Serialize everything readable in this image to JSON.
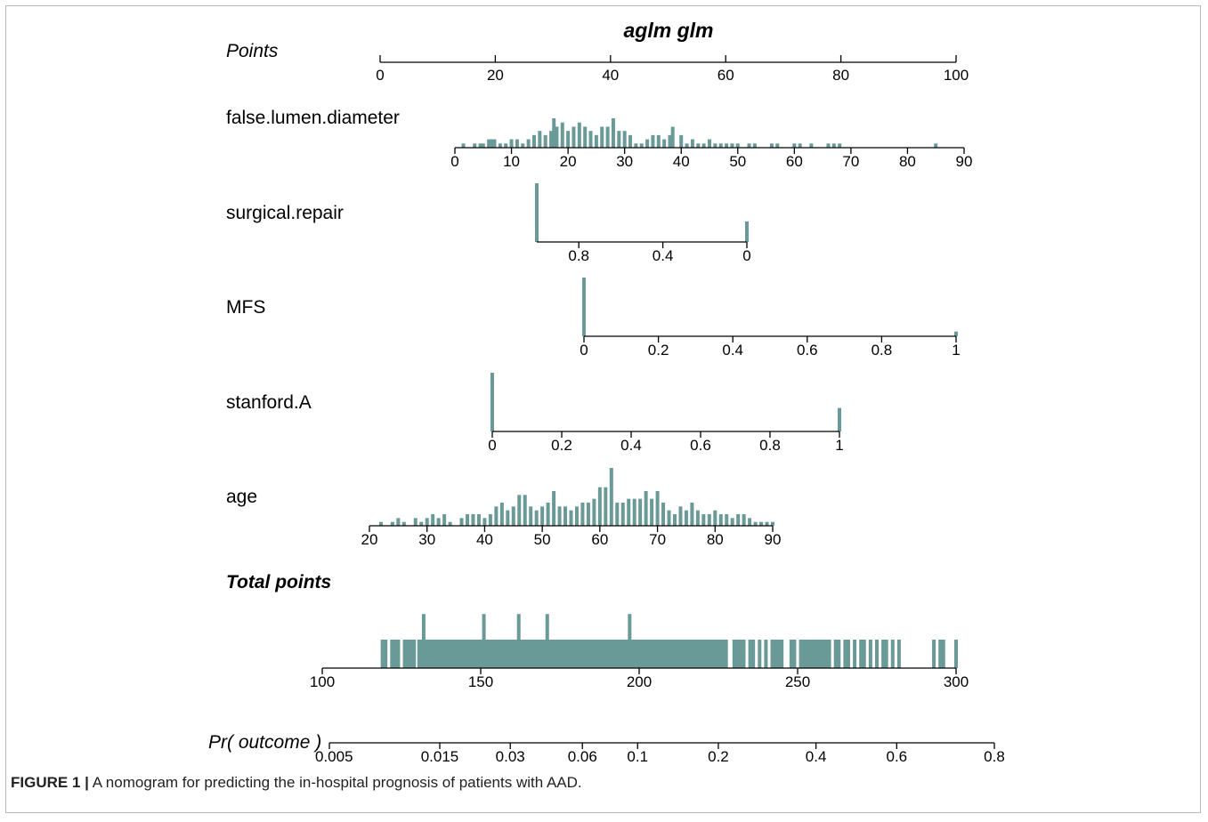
{
  "chart_data": {
    "type": "nomogram",
    "title": "aglm glm",
    "bar_color": "#6a9a97",
    "rows": [
      {
        "key": "points",
        "label": "Points",
        "label_style": "italic",
        "ticks": [
          "0",
          "20",
          "40",
          "60",
          "80",
          "100"
        ],
        "range": [
          0,
          100
        ]
      },
      {
        "key": "false_lumen_diameter",
        "label": "false.lumen.diameter",
        "ticks": [
          "0",
          "10",
          "20",
          "30",
          "40",
          "50",
          "60",
          "70",
          "80",
          "90"
        ],
        "range": [
          0,
          90
        ],
        "spikes": [
          {
            "x": 1.5,
            "h": 0.3
          },
          {
            "x": 3.5,
            "h": 0.3
          },
          {
            "x": 4.5,
            "h": 0.3
          },
          {
            "x": 5,
            "h": 0.3
          },
          {
            "x": 6,
            "h": 0.6
          },
          {
            "x": 6.5,
            "h": 0.6
          },
          {
            "x": 7,
            "h": 0.6
          },
          {
            "x": 8,
            "h": 0.3
          },
          {
            "x": 9,
            "h": 0.3
          },
          {
            "x": 10,
            "h": 0.6
          },
          {
            "x": 11,
            "h": 0.6
          },
          {
            "x": 12,
            "h": 0.3
          },
          {
            "x": 13,
            "h": 0.6
          },
          {
            "x": 14,
            "h": 0.9
          },
          {
            "x": 15,
            "h": 1.2
          },
          {
            "x": 16,
            "h": 0.9
          },
          {
            "x": 17,
            "h": 1.2
          },
          {
            "x": 17.5,
            "h": 2.1
          },
          {
            "x": 18,
            "h": 1.5
          },
          {
            "x": 19,
            "h": 1.8
          },
          {
            "x": 20,
            "h": 1.2
          },
          {
            "x": 21,
            "h": 1.5
          },
          {
            "x": 22,
            "h": 1.8
          },
          {
            "x": 23,
            "h": 1.5
          },
          {
            "x": 24,
            "h": 1.2
          },
          {
            "x": 25,
            "h": 0.9
          },
          {
            "x": 26,
            "h": 1.5
          },
          {
            "x": 27,
            "h": 1.5
          },
          {
            "x": 28,
            "h": 2.1
          },
          {
            "x": 29,
            "h": 1.2
          },
          {
            "x": 30,
            "h": 1.2
          },
          {
            "x": 31,
            "h": 0.9
          },
          {
            "x": 32,
            "h": 0.3
          },
          {
            "x": 33,
            "h": 0.3
          },
          {
            "x": 34,
            "h": 0.6
          },
          {
            "x": 35,
            "h": 0.9
          },
          {
            "x": 36,
            "h": 0.9
          },
          {
            "x": 37,
            "h": 0.6
          },
          {
            "x": 38,
            "h": 0.9
          },
          {
            "x": 38.5,
            "h": 1.5
          },
          {
            "x": 40,
            "h": 0.9
          },
          {
            "x": 41,
            "h": 0.3
          },
          {
            "x": 42,
            "h": 0.6
          },
          {
            "x": 43,
            "h": 0.3
          },
          {
            "x": 44,
            "h": 0.3
          },
          {
            "x": 45,
            "h": 0.6
          },
          {
            "x": 46,
            "h": 0.3
          },
          {
            "x": 47,
            "h": 0.3
          },
          {
            "x": 48,
            "h": 0.3
          },
          {
            "x": 49,
            "h": 0.3
          },
          {
            "x": 50,
            "h": 0.3
          },
          {
            "x": 52,
            "h": 0.3
          },
          {
            "x": 53,
            "h": 0.3
          },
          {
            "x": 56,
            "h": 0.3
          },
          {
            "x": 57,
            "h": 0.3
          },
          {
            "x": 60,
            "h": 0.3
          },
          {
            "x": 61,
            "h": 0.3
          },
          {
            "x": 63,
            "h": 0.3
          },
          {
            "x": 66,
            "h": 0.3
          },
          {
            "x": 67,
            "h": 0.3
          },
          {
            "x": 68,
            "h": 0.3
          },
          {
            "x": 85,
            "h": 0.3
          }
        ]
      },
      {
        "key": "surgical_repair",
        "label": "surgical.repair",
        "ticks": [
          "0.8",
          "0.4",
          "0"
        ],
        "range": [
          1,
          0
        ],
        "tick_values": [
          0.8,
          0.4,
          0
        ],
        "spikes": [
          {
            "x": 1,
            "h": 1.0
          },
          {
            "x": 0,
            "h": 0.35
          }
        ]
      },
      {
        "key": "mfs",
        "label": "MFS",
        "ticks": [
          "0",
          "0.2",
          "0.4",
          "0.6",
          "0.8",
          "1"
        ],
        "range": [
          0,
          1
        ],
        "spikes": [
          {
            "x": 0,
            "h": 1.0
          },
          {
            "x": 1,
            "h": 0.08
          }
        ]
      },
      {
        "key": "stanford_a",
        "label": "stanford.A",
        "ticks": [
          "0",
          "0.2",
          "0.4",
          "0.6",
          "0.8",
          "1"
        ],
        "range": [
          0,
          1
        ],
        "spikes": [
          {
            "x": 0,
            "h": 1.0
          },
          {
            "x": 1,
            "h": 0.4
          }
        ]
      },
      {
        "key": "age",
        "label": "age",
        "ticks": [
          "20",
          "30",
          "40",
          "50",
          "60",
          "70",
          "80",
          "90"
        ],
        "range": [
          20,
          90
        ],
        "spikes": [
          {
            "x": 22,
            "h": 1
          },
          {
            "x": 24,
            "h": 1
          },
          {
            "x": 25,
            "h": 2
          },
          {
            "x": 26,
            "h": 1
          },
          {
            "x": 28,
            "h": 2
          },
          {
            "x": 29,
            "h": 1
          },
          {
            "x": 30,
            "h": 2
          },
          {
            "x": 31,
            "h": 3
          },
          {
            "x": 32,
            "h": 2
          },
          {
            "x": 33,
            "h": 3
          },
          {
            "x": 34,
            "h": 1
          },
          {
            "x": 36,
            "h": 2
          },
          {
            "x": 37,
            "h": 3
          },
          {
            "x": 38,
            "h": 3
          },
          {
            "x": 39,
            "h": 3
          },
          {
            "x": 40,
            "h": 2
          },
          {
            "x": 41,
            "h": 3
          },
          {
            "x": 42,
            "h": 5
          },
          {
            "x": 43,
            "h": 6
          },
          {
            "x": 44,
            "h": 4
          },
          {
            "x": 45,
            "h": 5
          },
          {
            "x": 46,
            "h": 8
          },
          {
            "x": 47,
            "h": 8
          },
          {
            "x": 48,
            "h": 5
          },
          {
            "x": 49,
            "h": 4
          },
          {
            "x": 50,
            "h": 5
          },
          {
            "x": 51,
            "h": 6
          },
          {
            "x": 52,
            "h": 9
          },
          {
            "x": 53,
            "h": 5
          },
          {
            "x": 54,
            "h": 5
          },
          {
            "x": 55,
            "h": 4
          },
          {
            "x": 56,
            "h": 5
          },
          {
            "x": 57,
            "h": 6
          },
          {
            "x": 58,
            "h": 6
          },
          {
            "x": 59,
            "h": 7
          },
          {
            "x": 60,
            "h": 10
          },
          {
            "x": 61,
            "h": 10
          },
          {
            "x": 62,
            "h": 15
          },
          {
            "x": 63,
            "h": 6
          },
          {
            "x": 64,
            "h": 6
          },
          {
            "x": 65,
            "h": 7
          },
          {
            "x": 66,
            "h": 7
          },
          {
            "x": 67,
            "h": 7
          },
          {
            "x": 68,
            "h": 9
          },
          {
            "x": 69,
            "h": 7
          },
          {
            "x": 70,
            "h": 9
          },
          {
            "x": 71,
            "h": 6
          },
          {
            "x": 72,
            "h": 4
          },
          {
            "x": 73,
            "h": 3
          },
          {
            "x": 74,
            "h": 5
          },
          {
            "x": 75,
            "h": 4
          },
          {
            "x": 76,
            "h": 6
          },
          {
            "x": 77,
            "h": 4
          },
          {
            "x": 78,
            "h": 3
          },
          {
            "x": 79,
            "h": 3
          },
          {
            "x": 80,
            "h": 4
          },
          {
            "x": 81,
            "h": 3
          },
          {
            "x": 82,
            "h": 3
          },
          {
            "x": 83,
            "h": 2
          },
          {
            "x": 84,
            "h": 3
          },
          {
            "x": 85,
            "h": 3
          },
          {
            "x": 86,
            "h": 2
          },
          {
            "x": 87,
            "h": 1
          },
          {
            "x": 88,
            "h": 1
          },
          {
            "x": 89,
            "h": 1
          },
          {
            "x": 90,
            "h": 1
          }
        ]
      },
      {
        "key": "total_points",
        "label": "Total points",
        "label_style": "bold-italic",
        "ticks": [
          "100",
          "150",
          "200",
          "250",
          "300"
        ],
        "range": [
          100,
          300
        ],
        "dense_range": [
          130,
          228
        ],
        "spikes": [
          {
            "x": 119,
            "h": 1
          },
          {
            "x": 120,
            "h": 1
          },
          {
            "x": 122,
            "h": 1
          },
          {
            "x": 123,
            "h": 1
          },
          {
            "x": 124,
            "h": 1
          },
          {
            "x": 126,
            "h": 1
          },
          {
            "x": 127,
            "h": 1
          },
          {
            "x": 128,
            "h": 1
          },
          {
            "x": 129,
            "h": 1
          },
          {
            "x": 131,
            "h": 1
          },
          {
            "x": 132,
            "h": 1.9
          },
          {
            "x": 151,
            "h": 1.9
          },
          {
            "x": 162,
            "h": 1.9
          },
          {
            "x": 171,
            "h": 1.9
          },
          {
            "x": 197,
            "h": 1.9
          },
          {
            "x": 230,
            "h": 1
          },
          {
            "x": 231,
            "h": 1
          },
          {
            "x": 232,
            "h": 1
          },
          {
            "x": 233,
            "h": 1
          },
          {
            "x": 235,
            "h": 1
          },
          {
            "x": 236,
            "h": 1
          },
          {
            "x": 238,
            "h": 1
          },
          {
            "x": 240,
            "h": 1
          },
          {
            "x": 242,
            "h": 1
          },
          {
            "x": 243,
            "h": 1
          },
          {
            "x": 244,
            "h": 1
          },
          {
            "x": 245,
            "h": 1
          },
          {
            "x": 248,
            "h": 1
          },
          {
            "x": 249,
            "h": 1
          },
          {
            "x": 251,
            "h": 1
          },
          {
            "x": 252,
            "h": 1
          },
          {
            "x": 253,
            "h": 1
          },
          {
            "x": 254,
            "h": 1
          },
          {
            "x": 255,
            "h": 1
          },
          {
            "x": 256,
            "h": 1
          },
          {
            "x": 257,
            "h": 1
          },
          {
            "x": 258,
            "h": 1
          },
          {
            "x": 259,
            "h": 1
          },
          {
            "x": 260,
            "h": 1
          },
          {
            "x": 262,
            "h": 1
          },
          {
            "x": 263,
            "h": 1
          },
          {
            "x": 265,
            "h": 1
          },
          {
            "x": 266,
            "h": 1
          },
          {
            "x": 268,
            "h": 1
          },
          {
            "x": 270,
            "h": 1
          },
          {
            "x": 271,
            "h": 1
          },
          {
            "x": 273,
            "h": 1
          },
          {
            "x": 275,
            "h": 1
          },
          {
            "x": 277,
            "h": 1
          },
          {
            "x": 278,
            "h": 1
          },
          {
            "x": 280,
            "h": 1
          },
          {
            "x": 282,
            "h": 1
          },
          {
            "x": 293,
            "h": 1
          },
          {
            "x": 295,
            "h": 1
          },
          {
            "x": 296,
            "h": 1
          },
          {
            "x": 300,
            "h": 1
          }
        ]
      },
      {
        "key": "pr_outcome",
        "label": "Pr( outcome )",
        "label_style": "italic",
        "ticks": [
          "0.005",
          "0.015",
          "0.03",
          "0.06",
          "0.1",
          "0.2",
          "0.4",
          "0.6",
          "0.8"
        ],
        "tick_values": [
          0.005,
          0.015,
          0.03,
          0.06,
          0.1,
          0.2,
          0.4,
          0.6,
          0.8
        ],
        "scale": "logit"
      }
    ]
  },
  "caption": {
    "figure_label": "FIGURE 1 |",
    "text": "A nomogram for predicting the in-hospital prognosis of patients with AAD."
  }
}
